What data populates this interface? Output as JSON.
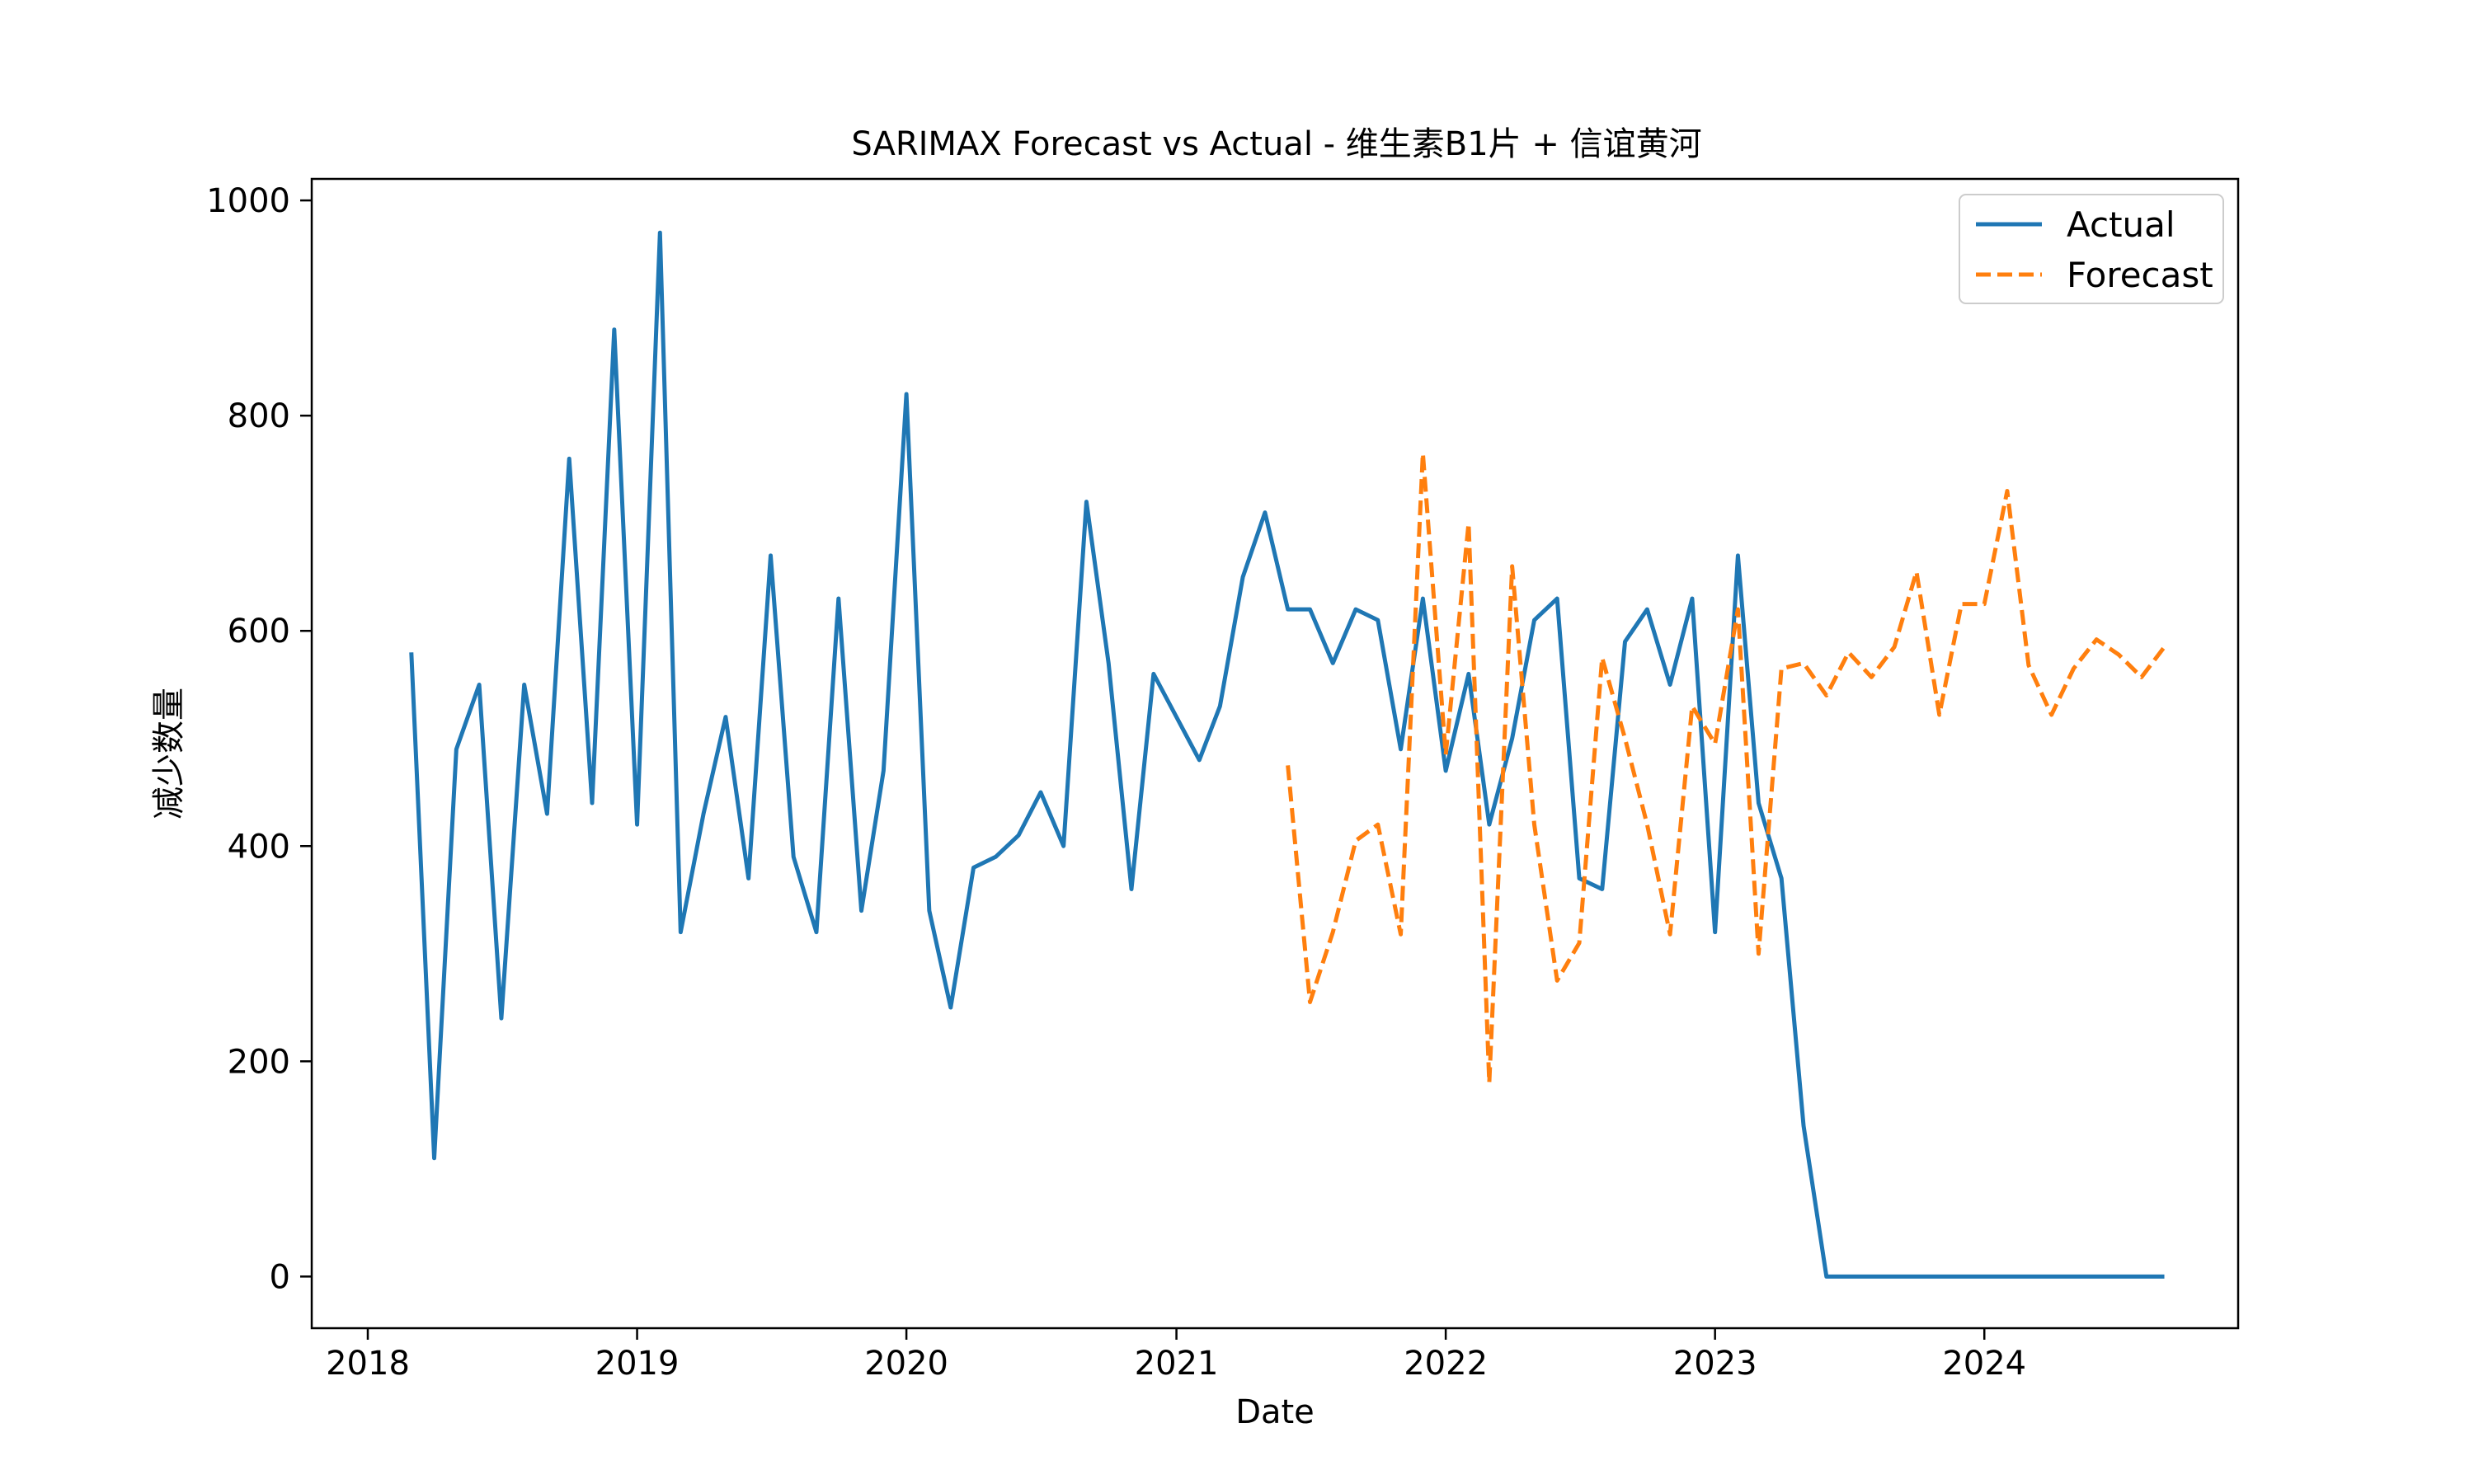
{
  "chart_data": {
    "type": "line",
    "title": "SARIMAX Forecast vs Actual - 维生素B1片 + 信谊黄河",
    "xlabel": "Date",
    "ylabel": "减少数量",
    "xlim": [
      "2017-10-17",
      "2024-12-10"
    ],
    "ylim": [
      -48,
      1020
    ],
    "x_ticks": [
      "2018-01-01",
      "2019-01-01",
      "2020-01-01",
      "2021-01-01",
      "2022-01-01",
      "2023-01-01",
      "2024-01-01"
    ],
    "x_tick_labels": [
      "2018",
      "2019",
      "2020",
      "2021",
      "2022",
      "2023",
      "2024"
    ],
    "y_ticks": [
      0,
      200,
      400,
      600,
      800,
      1000
    ],
    "y_tick_labels": [
      "0",
      "200",
      "400",
      "600",
      "800",
      "1000"
    ],
    "legend_position": "top-right",
    "series": [
      {
        "name": "Actual",
        "style": "solid",
        "color": "#1f77b4",
        "x": [
          "2018-03-01",
          "2018-04-01",
          "2018-05-01",
          "2018-06-01",
          "2018-07-01",
          "2018-08-01",
          "2018-09-01",
          "2018-10-01",
          "2018-11-01",
          "2018-12-01",
          "2019-01-01",
          "2019-02-01",
          "2019-03-01",
          "2019-04-01",
          "2019-05-01",
          "2019-06-01",
          "2019-07-01",
          "2019-08-01",
          "2019-09-01",
          "2019-10-01",
          "2019-11-01",
          "2019-12-01",
          "2020-01-01",
          "2020-02-01",
          "2020-03-01",
          "2020-04-01",
          "2020-05-01",
          "2020-06-01",
          "2020-07-01",
          "2020-08-01",
          "2020-09-01",
          "2020-10-01",
          "2020-11-01",
          "2020-12-01",
          "2021-01-01",
          "2021-02-01",
          "2021-03-01",
          "2021-04-01",
          "2021-05-01",
          "2021-06-01",
          "2021-07-01",
          "2021-08-01",
          "2021-09-01",
          "2021-10-01",
          "2021-11-01",
          "2021-12-01",
          "2022-01-01",
          "2022-02-01",
          "2022-03-01",
          "2022-04-01",
          "2022-05-01",
          "2022-06-01",
          "2022-07-01",
          "2022-08-01",
          "2022-09-01",
          "2022-10-01",
          "2022-11-01",
          "2022-12-01",
          "2023-01-01",
          "2023-02-01",
          "2023-03-01",
          "2023-04-01",
          "2023-05-01",
          "2023-06-01",
          "2023-07-01",
          "2023-08-01",
          "2023-09-01",
          "2023-10-01",
          "2023-11-01",
          "2023-12-01",
          "2024-01-01",
          "2024-02-01",
          "2024-03-01",
          "2024-04-01",
          "2024-05-01",
          "2024-06-01",
          "2024-07-01",
          "2024-08-01",
          "2024-09-01"
        ],
        "values": [
          580,
          110,
          490,
          550,
          240,
          550,
          430,
          760,
          440,
          880,
          420,
          970,
          320,
          430,
          520,
          370,
          670,
          390,
          320,
          630,
          340,
          470,
          820,
          340,
          250,
          380,
          390,
          410,
          450,
          400,
          720,
          570,
          360,
          560,
          520,
          480,
          530,
          650,
          710,
          620,
          620,
          570,
          620,
          610,
          490,
          630,
          470,
          560,
          420,
          500,
          610,
          630,
          370,
          360,
          590,
          620,
          550,
          630,
          320,
          670,
          440,
          370,
          140,
          0,
          0,
          0,
          0,
          0,
          0,
          0,
          0,
          0,
          0,
          0,
          0,
          0,
          0,
          0,
          0
        ]
      },
      {
        "name": "Forecast",
        "style": "dashed",
        "color": "#ff7f0e",
        "x": [
          "2021-06-01",
          "2021-07-01",
          "2021-08-01",
          "2021-09-01",
          "2021-10-01",
          "2021-11-01",
          "2021-12-01",
          "2022-01-01",
          "2022-02-01",
          "2022-03-01",
          "2022-04-01",
          "2022-05-01",
          "2022-06-01",
          "2022-07-01",
          "2022-08-01",
          "2022-09-01",
          "2022-10-01",
          "2022-11-01",
          "2022-12-01",
          "2023-01-01",
          "2023-02-01",
          "2023-03-01",
          "2023-04-01",
          "2023-05-01",
          "2023-06-01",
          "2023-07-01",
          "2023-08-01",
          "2023-09-01",
          "2023-10-01",
          "2023-11-01",
          "2023-12-01",
          "2024-01-01",
          "2024-02-01",
          "2024-03-01",
          "2024-04-01",
          "2024-05-01",
          "2024-06-01",
          "2024-07-01",
          "2024-08-01",
          "2024-09-01"
        ],
        "values": [
          475,
          255,
          320,
          405,
          420,
          318,
          765,
          485,
          700,
          180,
          660,
          420,
          275,
          310,
          575,
          500,
          420,
          318,
          530,
          495,
          620,
          300,
          565,
          570,
          540,
          580,
          557,
          585,
          655,
          522,
          625,
          625,
          730,
          568,
          522,
          565,
          592,
          578,
          557,
          585
        ]
      }
    ]
  }
}
